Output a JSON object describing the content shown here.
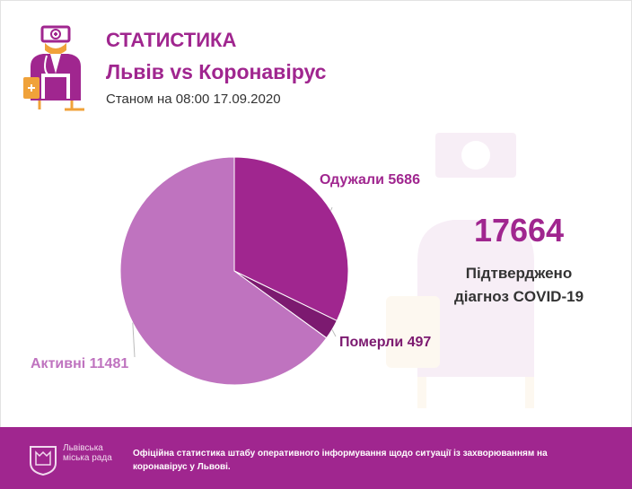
{
  "header": {
    "title": "СТАТИСТИКА",
    "subtitle": "Львів vs Коронавірус",
    "as_of": "Станом на 08:00 17.09.2020"
  },
  "summary": {
    "total": "17664",
    "caption_line1": "Підтверджено",
    "caption_line2": "діагноз COVID-19"
  },
  "chart_data": {
    "type": "pie",
    "title": "",
    "slices": [
      {
        "label": "Одужали 5686",
        "name": "Одужали",
        "value": 5686,
        "color": "#a0268f"
      },
      {
        "label": "Померли 497",
        "name": "Померли",
        "value": 497,
        "color": "#7c1a70"
      },
      {
        "label": "Активні 11481",
        "name": "Активні",
        "value": 11481,
        "color": "#bf73bf"
      }
    ],
    "start_angle": "12 o'clock",
    "direction": "clockwise",
    "legend": "none"
  },
  "footer": {
    "city_name": "Львівська міська рада",
    "text": "Офіційна статистика штабу оперативного інформування щодо ситуації із захворюванням на коронавірус у Львові."
  },
  "colors": {
    "accent": "#a0268f",
    "accent_light": "#bf73bf",
    "accent_dark": "#7c1a70",
    "doctor_orange": "#f0a23a"
  },
  "icons": {
    "logo": "doctor-icon",
    "background": "doctor-watermark-icon",
    "footer": "lviv-emblem-icon"
  }
}
